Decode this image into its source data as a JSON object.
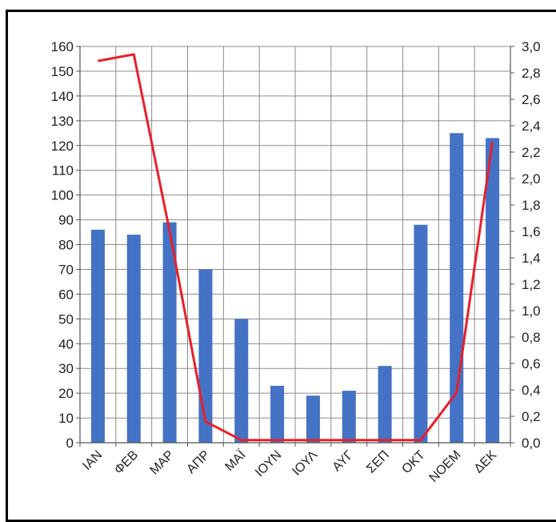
{
  "chart_data": {
    "type": "bar",
    "categories": [
      "ΙΑΝ",
      "ΦΕΒ",
      "ΜΑΡ",
      "ΑΠΡ",
      "ΜΑΪ",
      "ΙΟΥΝ",
      "ΙΟΥΛ",
      "ΑΥΓ",
      "ΣΕΠ",
      "ΟΚΤ",
      "ΝΟΕΜ",
      "ΔΕΚ"
    ],
    "series": [
      {
        "type": "bar",
        "axis": "left",
        "color": "#4472C4",
        "values": [
          86,
          84,
          89,
          70,
          50,
          23,
          19,
          21,
          31,
          88,
          125,
          123
        ]
      },
      {
        "type": "line",
        "axis": "right",
        "color": "#E8202A",
        "values": [
          2.89,
          2.94,
          1.6,
          0.16,
          0.02,
          0.02,
          0.02,
          0.02,
          0.02,
          0.02,
          0.38,
          2.28
        ]
      }
    ],
    "ylim_left": [
      0,
      160
    ],
    "ylim_right": [
      0,
      3.0
    ],
    "yticks_left": [
      "0",
      "10",
      "20",
      "30",
      "40",
      "50",
      "60",
      "70",
      "80",
      "90",
      "100",
      "110",
      "120",
      "130",
      "140",
      "150",
      "160"
    ],
    "yticks_right": [
      "0,0",
      "0,2",
      "0,4",
      "0,6",
      "0,8",
      "1,0",
      "1,2",
      "1,4",
      "1,6",
      "1,8",
      "2,0",
      "2,2",
      "2,4",
      "2,6",
      "2,8",
      "3,0"
    ],
    "grid": true
  }
}
